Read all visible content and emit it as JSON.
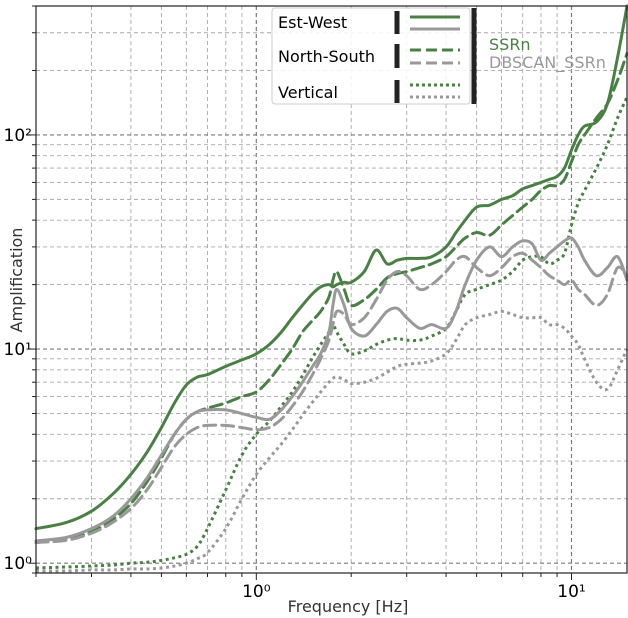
{
  "chart_data": {
    "type": "line",
    "title": "",
    "xlabel": "Frequency [Hz]",
    "ylabel": "Amplification",
    "xscale": "log",
    "yscale": "log",
    "xlim": [
      0.2,
      15
    ],
    "ylim": [
      0.9,
      400
    ],
    "grid": true,
    "legend_placement": "top-center",
    "x_ticks": [
      {
        "value": 1,
        "label": "10⁰"
      },
      {
        "value": 10,
        "label": "10¹"
      }
    ],
    "y_ticks": [
      {
        "value": 1,
        "label": "10⁰"
      },
      {
        "value": 10,
        "label": "10¹"
      },
      {
        "value": 100,
        "label": "10²"
      }
    ],
    "legend": {
      "components": [
        {
          "label": "Est-West",
          "style": "solid"
        },
        {
          "label": "North-South",
          "style": "dashed"
        },
        {
          "label": "Vertical",
          "style": "dotted"
        }
      ],
      "methods": [
        {
          "label": "SSRn",
          "color": "#4a7f45"
        },
        {
          "label": "DBSCAN_SSRn",
          "color": "#999999"
        }
      ]
    },
    "x": [
      0.2,
      0.25,
      0.3,
      0.35,
      0.4,
      0.45,
      0.5,
      0.55,
      0.6,
      0.65,
      0.7,
      0.8,
      0.9,
      1.0,
      1.1,
      1.2,
      1.3,
      1.4,
      1.5,
      1.6,
      1.7,
      1.75,
      1.8,
      1.9,
      2.0,
      2.2,
      2.4,
      2.6,
      2.8,
      3.0,
      3.3,
      3.6,
      4.0,
      4.3,
      4.6,
      5.0,
      5.5,
      6.0,
      6.5,
      7.0,
      7.5,
      8.0,
      8.5,
      9.0,
      9.5,
      10.0,
      10.5,
      11.0,
      12.0,
      13.0,
      14.0,
      15.0
    ],
    "series": [
      {
        "name": "",
        "method": "SSRn",
        "component": "Est-West",
        "color": "#4a7f45",
        "dash": "solid",
        "values": [
          1.45,
          1.55,
          1.75,
          2.1,
          2.6,
          3.3,
          4.3,
          5.6,
          6.8,
          7.4,
          7.6,
          8.3,
          8.9,
          9.5,
          10.5,
          12.0,
          14.0,
          16.0,
          18.0,
          19.5,
          20.0,
          19.5,
          20.0,
          20.5,
          20.5,
          23.0,
          29.0,
          25.0,
          26.0,
          26.5,
          26.5,
          27.0,
          30.0,
          35.0,
          40.0,
          46.0,
          47.0,
          50.0,
          52.0,
          56.0,
          58.0,
          60.0,
          62.0,
          64.0,
          70.0,
          85.0,
          100.0,
          110.0,
          115.0,
          140.0,
          230.0,
          400.0
        ]
      },
      {
        "name": "",
        "method": "SSRn",
        "component": "North-South",
        "color": "#4a7f45",
        "dash": "dashed",
        "values": [
          1.25,
          1.3,
          1.4,
          1.6,
          1.9,
          2.4,
          3.1,
          4.0,
          4.7,
          5.1,
          5.3,
          5.6,
          6.0,
          6.3,
          7.2,
          8.5,
          10.0,
          12.0,
          13.5,
          15.0,
          17.5,
          21.0,
          23.0,
          19.0,
          16.0,
          17.0,
          19.0,
          21.5,
          22.5,
          23.0,
          24.0,
          25.0,
          27.0,
          30.0,
          33.0,
          35.0,
          34.0,
          38.0,
          42.0,
          46.0,
          50.0,
          55.0,
          58.0,
          58.0,
          62.0,
          75.0,
          90.0,
          100.0,
          120.0,
          140.0,
          180.0,
          240.0
        ]
      },
      {
        "name": "",
        "method": "SSRn",
        "component": "Vertical",
        "color": "#4a7f45",
        "dash": "dotted",
        "values": [
          0.95,
          0.96,
          0.97,
          0.98,
          1.0,
          1.01,
          1.03,
          1.06,
          1.1,
          1.2,
          1.45,
          2.2,
          3.2,
          4.0,
          4.6,
          5.4,
          6.3,
          7.5,
          9.0,
          10.5,
          12.0,
          13.0,
          12.0,
          10.5,
          9.5,
          9.8,
          10.5,
          11.0,
          11.2,
          11.0,
          11.0,
          11.5,
          12.5,
          15.0,
          18.0,
          19.0,
          20.0,
          21.0,
          23.0,
          26.0,
          27.0,
          27.0,
          25.0,
          26.0,
          28.0,
          38.0,
          48.0,
          55.0,
          70.0,
          90.0,
          120.0,
          150.0
        ]
      },
      {
        "name": "",
        "method": "DBSCAN_SSRn",
        "component": "Est-West",
        "color": "#999999",
        "dash": "solid",
        "values": [
          1.27,
          1.32,
          1.45,
          1.65,
          2.0,
          2.5,
          3.2,
          4.0,
          4.7,
          5.1,
          5.2,
          5.2,
          5.0,
          4.8,
          4.7,
          5.2,
          6.0,
          7.0,
          8.2,
          9.5,
          12.0,
          16.0,
          19.0,
          16.0,
          12.5,
          11.5,
          13.0,
          15.0,
          15.5,
          14.0,
          12.5,
          13.0,
          12.5,
          15.0,
          20.0,
          26.0,
          30.0,
          27.0,
          30.0,
          32.0,
          31.0,
          26.0,
          28.0,
          30.0,
          32.0,
          33.0,
          30.0,
          26.0,
          22.0,
          24.0,
          27.0,
          21.0
        ]
      },
      {
        "name": "",
        "method": "DBSCAN_SSRn",
        "component": "North-South",
        "color": "#999999",
        "dash": "dashed",
        "values": [
          1.25,
          1.28,
          1.38,
          1.55,
          1.8,
          2.2,
          2.8,
          3.5,
          4.0,
          4.3,
          4.4,
          4.4,
          4.3,
          4.2,
          4.3,
          4.7,
          5.4,
          6.3,
          7.5,
          9.0,
          11.0,
          13.0,
          15.0,
          14.5,
          13.0,
          14.0,
          17.0,
          21.0,
          23.0,
          22.0,
          19.0,
          20.0,
          23.0,
          26.0,
          27.0,
          24.0,
          22.0,
          24.0,
          27.0,
          28.0,
          26.0,
          24.0,
          22.0,
          21.0,
          20.0,
          21.0,
          19.0,
          18.0,
          16.0,
          18.0,
          24.0,
          22.0
        ]
      },
      {
        "name": "",
        "method": "DBSCAN_SSRn",
        "component": "Vertical",
        "color": "#999999",
        "dash": "dotted",
        "values": [
          0.92,
          0.92,
          0.93,
          0.93,
          0.94,
          0.94,
          0.95,
          0.97,
          1.0,
          1.05,
          1.12,
          1.45,
          2.0,
          2.6,
          3.1,
          3.6,
          4.2,
          4.9,
          5.6,
          6.3,
          7.0,
          7.3,
          7.4,
          7.2,
          6.9,
          7.0,
          7.3,
          7.8,
          8.3,
          8.5,
          8.6,
          8.8,
          9.5,
          11.0,
          13.0,
          14.0,
          14.5,
          15.0,
          14.5,
          14.0,
          14.0,
          14.0,
          13.0,
          13.0,
          12.5,
          11.5,
          10.5,
          9.0,
          7.0,
          6.5,
          8.0,
          10.0
        ]
      }
    ]
  }
}
